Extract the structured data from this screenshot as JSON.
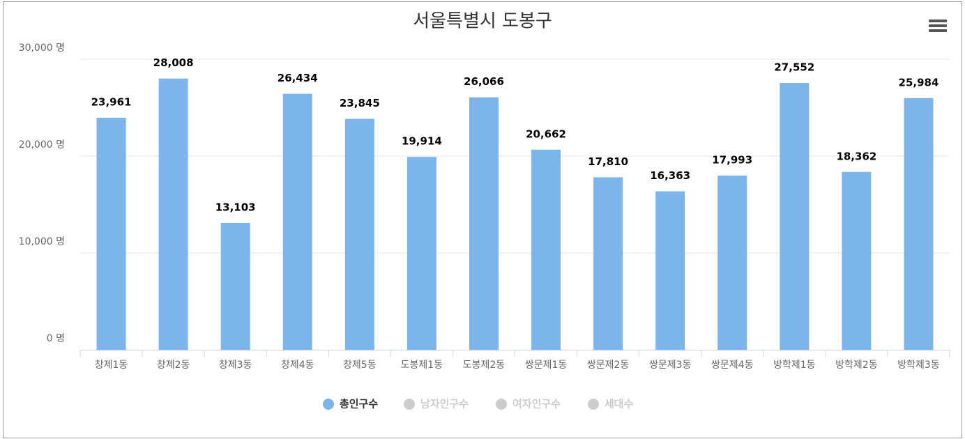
{
  "chart_data": {
    "type": "bar",
    "title": "서울특별시 도봉구",
    "categories": [
      "창제1동",
      "창제2동",
      "창제3동",
      "창제4동",
      "창제5동",
      "도봉제1동",
      "도봉제2동",
      "쌍문제1동",
      "쌍문제2동",
      "쌍문제3동",
      "쌍문제4동",
      "방학제1동",
      "방학제2동",
      "방학제3동"
    ],
    "series": [
      {
        "name": "총인구수",
        "color": "#7cb5ec",
        "values": [
          23961,
          28008,
          13103,
          26434,
          23845,
          19914,
          26066,
          20662,
          17810,
          16363,
          17993,
          27552,
          18362,
          25984
        ],
        "value_labels": [
          "23,961",
          "28,008",
          "13,103",
          "26,434",
          "23,845",
          "19,914",
          "26,066",
          "20,662",
          "17,810",
          "16,363",
          "17,993",
          "27,552",
          "18,362",
          "25,984"
        ]
      },
      {
        "name": "남자인구수",
        "color": "#cccccc",
        "visible": false
      },
      {
        "name": "여자인구수",
        "color": "#cccccc",
        "visible": false
      },
      {
        "name": "세대수",
        "color": "#cccccc",
        "visible": false
      }
    ],
    "ylim": [
      0,
      30000
    ],
    "yticks": [
      {
        "value": 0,
        "label": "0 명"
      },
      {
        "value": 10000,
        "label": "10,000 명"
      },
      {
        "value": 20000,
        "label": "20,000 명"
      },
      {
        "value": 30000,
        "label": "30,000 명"
      }
    ],
    "grid": true,
    "legend": "bottom"
  }
}
